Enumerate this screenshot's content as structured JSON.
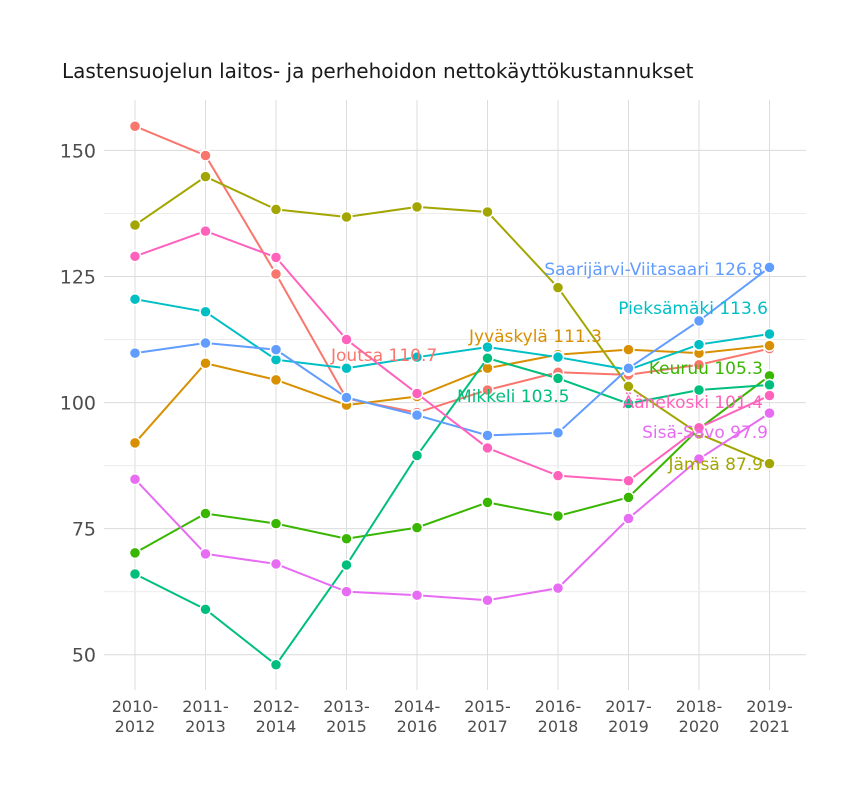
{
  "chart_data": {
    "type": "line",
    "title": "Lastensuojelun laitos- ja perhehoidon nettokäyttökustannukset",
    "xlabel": "",
    "ylabel": "",
    "ylim": [
      43,
      160
    ],
    "y_ticks": [
      50,
      75,
      100,
      125,
      150
    ],
    "categories": [
      "2010-\n2012",
      "2011-\n2013",
      "2012-\n2014",
      "2013-\n2015",
      "2014-\n2016",
      "2015-\n2017",
      "2016-\n2018",
      "2017-\n2019",
      "2018-\n2020",
      "2019-\n2021"
    ],
    "grid": true,
    "legend": "none",
    "series": [
      {
        "name": "Joutsa",
        "label": "Joutsa 110.7",
        "color": "#F8766D",
        "values": [
          154.8,
          149.0,
          125.5,
          100.8,
          98.0,
          102.5,
          106.0,
          105.5,
          107.5,
          110.7
        ]
      },
      {
        "name": "Jyväskylä",
        "label": "Jyväskylä 111.3",
        "color": "#D89000",
        "values": [
          92.0,
          107.8,
          104.5,
          99.5,
          101.2,
          106.8,
          109.5,
          110.5,
          109.8,
          111.3
        ]
      },
      {
        "name": "Jämsä",
        "label": "Jämsä 87.9",
        "color": "#A3A500",
        "values": [
          135.2,
          144.8,
          138.3,
          136.8,
          138.8,
          137.8,
          122.8,
          103.2,
          93.8,
          87.9
        ]
      },
      {
        "name": "Keuruu",
        "label": "Keuruu 105.3",
        "color": "#39B600",
        "values": [
          70.2,
          78.0,
          76.0,
          73.0,
          75.2,
          80.2,
          77.5,
          81.2,
          94.8,
          105.3
        ]
      },
      {
        "name": "Mikkeli",
        "label": "Mikkeli 103.5",
        "color": "#00BF7D",
        "values": [
          66.0,
          59.0,
          48.0,
          67.8,
          89.5,
          108.8,
          104.8,
          99.8,
          102.5,
          103.5
        ]
      },
      {
        "name": "Pieksämäki",
        "label": "Pieksämäki 113.6",
        "color": "#00BFC4",
        "values": [
          120.5,
          118.0,
          108.5,
          106.8,
          109.0,
          111.0,
          109.0,
          106.5,
          111.5,
          113.6
        ]
      },
      {
        "name": "Saarijärvi-Viitasaari",
        "label": "Saarijärvi-Viitasaari 126.8",
        "color": "#619CFF",
        "values": [
          109.8,
          111.8,
          110.5,
          101.0,
          97.5,
          93.5,
          94.0,
          106.8,
          116.2,
          126.8
        ]
      },
      {
        "name": "Sisä-Savo",
        "label": "Sisä-Savo 97.9",
        "color": "#E76BF3",
        "values": [
          84.8,
          70.0,
          68.0,
          62.5,
          61.8,
          60.8,
          63.2,
          77.0,
          88.8,
          97.9
        ]
      },
      {
        "name": "Äänekoski",
        "label": "Äänekoski 101.4",
        "color": "#FF62BC",
        "values": [
          129.0,
          134.0,
          128.8,
          112.5,
          101.8,
          91.0,
          85.5,
          84.5,
          95.0,
          101.4
        ]
      }
    ]
  }
}
